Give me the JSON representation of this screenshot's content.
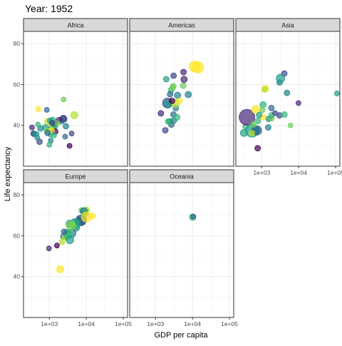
{
  "chart_data": {
    "type": "scatter",
    "title": "Year: 1952",
    "xlabel": "GDP per capita",
    "ylabel": "Life expectancy",
    "x_scale": "log10",
    "xlim": [
      200,
      130000
    ],
    "ylim": [
      20,
      86
    ],
    "x_ticks": [
      1000,
      10000,
      100000
    ],
    "x_tick_labels": [
      "1e+03",
      "1e+04",
      "1e+05"
    ],
    "y_ticks": [
      40,
      60,
      80
    ],
    "y_tick_labels": [
      "40",
      "60",
      "80"
    ],
    "grid": true,
    "legend": "none",
    "facets": [
      {
        "name": "Africa",
        "points": [
          {
            "x": 2449,
            "y": 43.1,
            "color": "#3B528B",
            "size": 4.5
          },
          {
            "x": 3521,
            "y": 30.0,
            "color": "#440154",
            "size": 3.5
          },
          {
            "x": 1063,
            "y": 38.2,
            "color": "#26828E",
            "size": 4.0
          },
          {
            "x": 851,
            "y": 47.6,
            "color": "#31688E",
            "size": 3.5
          },
          {
            "x": 543,
            "y": 32.0,
            "color": "#3E4A89",
            "size": 4.0
          },
          {
            "x": 339,
            "y": 39.0,
            "color": "#482878",
            "size": 3.5
          },
          {
            "x": 1173,
            "y": 38.5,
            "color": "#1F9E89",
            "size": 4.5
          },
          {
            "x": 1072,
            "y": 35.5,
            "color": "#35B779",
            "size": 3.5
          },
          {
            "x": 1178,
            "y": 38.1,
            "color": "#6DCD59",
            "size": 4.5
          },
          {
            "x": 1103,
            "y": 40.7,
            "color": "#B4DE2C",
            "size": 3.5
          },
          {
            "x": 781,
            "y": 39.1,
            "color": "#1F9E89",
            "size": 4.0
          },
          {
            "x": 2126,
            "y": 42.1,
            "color": "#26828E",
            "size": 4.0
          },
          {
            "x": 1389,
            "y": 40.5,
            "color": "#482878",
            "size": 4.0
          },
          {
            "x": 2670,
            "y": 34.5,
            "color": "#31688E",
            "size": 3.5
          },
          {
            "x": 376,
            "y": 35.9,
            "color": "#3E4A89",
            "size": 4.0
          },
          {
            "x": 468,
            "y": 34.1,
            "color": "#26828E",
            "size": 3.5
          },
          {
            "x": 1418,
            "y": 39.6,
            "color": "#35B779",
            "size": 4.0
          },
          {
            "x": 854,
            "y": 37.4,
            "color": "#6DCD59",
            "size": 4.0
          },
          {
            "x": 911,
            "y": 41.9,
            "color": "#B4DE2C",
            "size": 4.5
          },
          {
            "x": 1240,
            "y": 42.7,
            "color": "#35B779",
            "size": 4.0
          },
          {
            "x": 575,
            "y": 38.5,
            "color": "#26828E",
            "size": 4.0
          },
          {
            "x": 2387,
            "y": 43.2,
            "color": "#3E4A89",
            "size": 5.0
          },
          {
            "x": 1443,
            "y": 37.0,
            "color": "#440154",
            "size": 4.0
          },
          {
            "x": 369,
            "y": 36.2,
            "color": "#31688E",
            "size": 3.5
          },
          {
            "x": 1062,
            "y": 42.3,
            "color": "#1F9E89",
            "size": 4.0
          },
          {
            "x": 1147,
            "y": 37.6,
            "color": "#FDE725",
            "size": 4.0
          },
          {
            "x": 894,
            "y": 36.3,
            "color": "#31688E",
            "size": 4.0
          },
          {
            "x": 493,
            "y": 40.4,
            "color": "#35B779",
            "size": 3.5
          },
          {
            "x": 1826,
            "y": 42.6,
            "color": "#482878",
            "size": 4.0
          },
          {
            "x": 2424,
            "y": 52.7,
            "color": "#6DCD59",
            "size": 3.5
          },
          {
            "x": 1200,
            "y": 41.2,
            "color": "#3E4A89",
            "size": 4.0
          },
          {
            "x": 1088,
            "y": 32.5,
            "color": "#26828E",
            "size": 3.5
          },
          {
            "x": 453,
            "y": 35.8,
            "color": "#1F9E89",
            "size": 3.5
          },
          {
            "x": 1315,
            "y": 35.2,
            "color": "#35B779",
            "size": 4.0
          },
          {
            "x": 4726,
            "y": 45.0,
            "color": "#B4DE2C",
            "size": 5.0
          },
          {
            "x": 2800,
            "y": 39.6,
            "color": "#26828E",
            "size": 4.0
          },
          {
            "x": 4000,
            "y": 36.0,
            "color": "#3E4A89",
            "size": 3.5
          },
          {
            "x": 1000,
            "y": 30.5,
            "color": "#35B779",
            "size": 3.5
          },
          {
            "x": 500,
            "y": 48.0,
            "color": "#FDE725",
            "size": 3.5
          },
          {
            "x": 1700,
            "y": 41.0,
            "color": "#6DCD59",
            "size": 3.5
          }
        ]
      },
      {
        "name": "Americas",
        "points": [
          {
            "x": 5911,
            "y": 62.5,
            "color": "#482878",
            "size": 4.5
          },
          {
            "x": 2677,
            "y": 40.4,
            "color": "#31688E",
            "size": 4.0
          },
          {
            "x": 2109,
            "y": 50.9,
            "color": "#3E4A89",
            "size": 7.0
          },
          {
            "x": 11367,
            "y": 68.8,
            "color": "#FDE725",
            "size": 7.5
          },
          {
            "x": 3940,
            "y": 54.7,
            "color": "#26828E",
            "size": 4.5
          },
          {
            "x": 2144,
            "y": 50.6,
            "color": "#1F9E89",
            "size": 5.0
          },
          {
            "x": 2628,
            "y": 57.2,
            "color": "#35B779",
            "size": 4.0
          },
          {
            "x": 5587,
            "y": 59.4,
            "color": "#6DCD59",
            "size": 4.0
          },
          {
            "x": 1398,
            "y": 45.9,
            "color": "#482878",
            "size": 4.0
          },
          {
            "x": 3522,
            "y": 48.4,
            "color": "#26828E",
            "size": 4.0
          },
          {
            "x": 3048,
            "y": 45.3,
            "color": "#31688E",
            "size": 4.0
          },
          {
            "x": 2428,
            "y": 42.0,
            "color": "#1F9E89",
            "size": 4.0
          },
          {
            "x": 1840,
            "y": 37.6,
            "color": "#3E4A89",
            "size": 4.0
          },
          {
            "x": 2194,
            "y": 41.9,
            "color": "#35B779",
            "size": 4.0
          },
          {
            "x": 2898,
            "y": 58.5,
            "color": "#6DCD59",
            "size": 4.0
          },
          {
            "x": 3478,
            "y": 50.8,
            "color": "#B4DE2C",
            "size": 5.5
          },
          {
            "x": 3112,
            "y": 42.3,
            "color": "#26828E",
            "size": 4.0
          },
          {
            "x": 2480,
            "y": 55.2,
            "color": "#31688E",
            "size": 4.0
          },
          {
            "x": 1952,
            "y": 62.6,
            "color": "#1F9E89",
            "size": 4.0
          },
          {
            "x": 3759,
            "y": 43.9,
            "color": "#35B779",
            "size": 4.5
          },
          {
            "x": 3082,
            "y": 64.3,
            "color": "#3E4A89",
            "size": 4.0
          },
          {
            "x": 3023,
            "y": 59.1,
            "color": "#6DCD59",
            "size": 4.0
          },
          {
            "x": 13990,
            "y": 68.4,
            "color": "#FDE725",
            "size": 8.0
          },
          {
            "x": 5717,
            "y": 66.1,
            "color": "#482878",
            "size": 4.0
          },
          {
            "x": 7690,
            "y": 55.1,
            "color": "#26828E",
            "size": 4.5
          },
          {
            "x": 4500,
            "y": 52.0,
            "color": "#FDE725",
            "size": 4.0
          },
          {
            "x": 2800,
            "y": 52.0,
            "color": "#440154",
            "size": 4.0
          }
        ]
      },
      {
        "name": "Asia",
        "points": [
          {
            "x": 779,
            "y": 28.8,
            "color": "#440154",
            "size": 4.0
          },
          {
            "x": 9867,
            "y": 50.9,
            "color": "#482878",
            "size": 3.5
          },
          {
            "x": 684,
            "y": 37.5,
            "color": "#31688E",
            "size": 6.0
          },
          {
            "x": 368,
            "y": 39.4,
            "color": "#35B779",
            "size": 4.0
          },
          {
            "x": 400,
            "y": 44.0,
            "color": "#482878",
            "size": 11.0
          },
          {
            "x": 3054,
            "y": 61.0,
            "color": "#26828E",
            "size": 4.0
          },
          {
            "x": 547,
            "y": 37.4,
            "color": "#1F9E89",
            "size": 9.0
          },
          {
            "x": 750,
            "y": 37.5,
            "color": "#31688E",
            "size": 6.5
          },
          {
            "x": 3035,
            "y": 44.9,
            "color": "#3E4A89",
            "size": 4.0
          },
          {
            "x": 4129,
            "y": 45.3,
            "color": "#35B779",
            "size": 4.0
          },
          {
            "x": 4086,
            "y": 65.4,
            "color": "#3E4A89",
            "size": 4.0
          },
          {
            "x": 3217,
            "y": 63.0,
            "color": "#1F9E89",
            "size": 6.0
          },
          {
            "x": 1547,
            "y": 43.2,
            "color": "#26828E",
            "size": 4.0
          },
          {
            "x": 1088,
            "y": 50.1,
            "color": "#35B779",
            "size": 4.5
          },
          {
            "x": 1030,
            "y": 47.5,
            "color": "#6DCD59",
            "size": 4.0
          },
          {
            "x": 108382,
            "y": 55.6,
            "color": "#1F9E89",
            "size": 3.5
          },
          {
            "x": 4835,
            "y": 55.9,
            "color": "#26828E",
            "size": 4.0
          },
          {
            "x": 1831,
            "y": 48.5,
            "color": "#31688E",
            "size": 4.0
          },
          {
            "x": 786,
            "y": 42.2,
            "color": "#35B779",
            "size": 4.0
          },
          {
            "x": 331,
            "y": 36.3,
            "color": "#1F9E89",
            "size": 5.0
          },
          {
            "x": 545,
            "y": 36.2,
            "color": "#B4DE2C",
            "size": 4.0
          },
          {
            "x": 1828,
            "y": 43.4,
            "color": "#6DCD59",
            "size": 4.0
          },
          {
            "x": 684,
            "y": 47.8,
            "color": "#FDE725",
            "size": 5.5
          },
          {
            "x": 1273,
            "y": 58.0,
            "color": "#FDE725",
            "size": 4.5
          },
          {
            "x": 1207,
            "y": 57.6,
            "color": "#B4DE2C",
            "size": 4.0
          },
          {
            "x": 1860,
            "y": 45.0,
            "color": "#35B779",
            "size": 4.0
          },
          {
            "x": 605,
            "y": 40.5,
            "color": "#6DCD59",
            "size": 4.0
          },
          {
            "x": 1500,
            "y": 39.0,
            "color": "#26828E",
            "size": 4.0
          },
          {
            "x": 6000,
            "y": 40.0,
            "color": "#6DCD59",
            "size": 3.5
          },
          {
            "x": 1100,
            "y": 44.0,
            "color": "#FDE725",
            "size": 4.0
          },
          {
            "x": 850,
            "y": 45.0,
            "color": "#1F9E89",
            "size": 4.0
          },
          {
            "x": 2300,
            "y": 46.0,
            "color": "#3E4A89",
            "size": 3.5
          }
        ]
      },
      {
        "name": "Europe",
        "points": [
          {
            "x": 1601,
            "y": 55.2,
            "color": "#440154",
            "size": 3.5
          },
          {
            "x": 6137,
            "y": 66.8,
            "color": "#3E4A89",
            "size": 4.5
          },
          {
            "x": 8343,
            "y": 68.0,
            "color": "#31688E",
            "size": 4.5
          },
          {
            "x": 974,
            "y": 53.8,
            "color": "#482878",
            "size": 3.5
          },
          {
            "x": 2444,
            "y": 59.6,
            "color": "#26828E",
            "size": 4.5
          },
          {
            "x": 3119,
            "y": 61.2,
            "color": "#1F9E89",
            "size": 4.0
          },
          {
            "x": 6876,
            "y": 66.9,
            "color": "#3E4A89",
            "size": 5.0
          },
          {
            "x": 9692,
            "y": 70.8,
            "color": "#35B779",
            "size": 4.0
          },
          {
            "x": 6424,
            "y": 66.6,
            "color": "#6DCD59",
            "size": 4.0
          },
          {
            "x": 7030,
            "y": 67.4,
            "color": "#3E4A89",
            "size": 7.0
          },
          {
            "x": 7144,
            "y": 67.5,
            "color": "#31688E",
            "size": 7.5
          },
          {
            "x": 3531,
            "y": 65.9,
            "color": "#1F9E89",
            "size": 5.0
          },
          {
            "x": 5264,
            "y": 64.0,
            "color": "#26828E",
            "size": 5.0
          },
          {
            "x": 7268,
            "y": 72.5,
            "color": "#6DCD59",
            "size": 3.5
          },
          {
            "x": 5211,
            "y": 66.9,
            "color": "#35B779",
            "size": 4.0
          },
          {
            "x": 4931,
            "y": 65.9,
            "color": "#1F9E89",
            "size": 7.0
          },
          {
            "x": 2648,
            "y": 59.3,
            "color": "#B4DE2C",
            "size": 3.5
          },
          {
            "x": 8941,
            "y": 72.1,
            "color": "#35B779",
            "size": 5.0
          },
          {
            "x": 10095,
            "y": 72.7,
            "color": "#B4DE2C",
            "size": 4.0
          },
          {
            "x": 4029,
            "y": 61.3,
            "color": "#26828E",
            "size": 6.0
          },
          {
            "x": 3068,
            "y": 59.8,
            "color": "#6DCD59",
            "size": 5.0
          },
          {
            "x": 3144,
            "y": 61.1,
            "color": "#35B779",
            "size": 6.0
          },
          {
            "x": 3582,
            "y": 58.0,
            "color": "#1F9E89",
            "size": 5.5
          },
          {
            "x": 5074,
            "y": 64.4,
            "color": "#35B779",
            "size": 4.0
          },
          {
            "x": 4215,
            "y": 65.6,
            "color": "#B4DE2C",
            "size": 4.0
          },
          {
            "x": 3834,
            "y": 64.9,
            "color": "#6DCD59",
            "size": 6.5
          },
          {
            "x": 8528,
            "y": 71.9,
            "color": "#26828E",
            "size": 5.0
          },
          {
            "x": 14734,
            "y": 69.6,
            "color": "#FDE725",
            "size": 4.0
          },
          {
            "x": 1969,
            "y": 43.6,
            "color": "#FDE725",
            "size": 5.0
          },
          {
            "x": 9980,
            "y": 69.2,
            "color": "#FDE725",
            "size": 7.0
          },
          {
            "x": 2500,
            "y": 62.0,
            "color": "#31688E",
            "size": 4.0
          },
          {
            "x": 2200,
            "y": 57.0,
            "color": "#B4DE2C",
            "size": 4.0
          }
        ]
      },
      {
        "name": "Oceania",
        "points": [
          {
            "x": 10040,
            "y": 69.1,
            "color": "#35B779",
            "size": 4.5
          },
          {
            "x": 10557,
            "y": 69.4,
            "color": "#31688E",
            "size": 3.5
          }
        ]
      }
    ]
  }
}
